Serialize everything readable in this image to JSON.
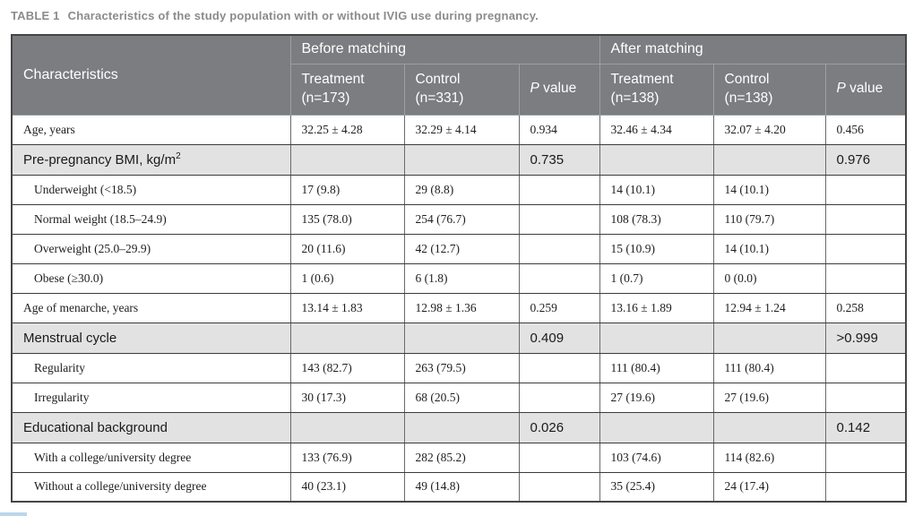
{
  "caption": {
    "label": "TABLE 1",
    "text": "Characteristics of the study population with or without IVIG use during pregnancy."
  },
  "colors": {
    "header_bg": "#7b7d80",
    "header_text": "#ffffff",
    "section_row_bg": "#e2e2e2",
    "caption_text": "#8b8b8b",
    "outer_border": "#454545"
  },
  "table": {
    "corner_header": "Characteristics",
    "groups": [
      {
        "label": "Before matching"
      },
      {
        "label": "After matching"
      }
    ],
    "subheaders": [
      {
        "name": "before-treatment-header",
        "lines": "Treatment\n(n=173)"
      },
      {
        "name": "before-control-header",
        "lines": "Control\n(n=331)"
      },
      {
        "name": "before-pvalue-header",
        "italic": "P",
        "rest": " value"
      },
      {
        "name": "after-treatment-header",
        "lines": "Treatment\n(n=138)"
      },
      {
        "name": "after-control-header",
        "lines": "Control\n(n=138)"
      },
      {
        "name": "after-pvalue-header",
        "italic": "P",
        "rest": " value"
      }
    ],
    "rows": [
      {
        "type": "data",
        "indent": false,
        "label": "Age, years",
        "cells": [
          "32.25 ± 4.28",
          "32.29 ± 4.14",
          "0.934",
          "32.46 ± 4.34",
          "32.07 ± 4.20",
          "0.456"
        ]
      },
      {
        "type": "section",
        "indent": false,
        "label": "Pre-pregnancy BMI, kg/m",
        "label_sup": "2",
        "cells": [
          "",
          "",
          "0.735",
          "",
          "",
          "0.976"
        ]
      },
      {
        "type": "data",
        "indent": true,
        "label": "Underweight (<18.5)",
        "cells": [
          "17 (9.8)",
          "29 (8.8)",
          "",
          "14 (10.1)",
          "14 (10.1)",
          ""
        ]
      },
      {
        "type": "data",
        "indent": true,
        "label": "Normal weight (18.5–24.9)",
        "cells": [
          "135 (78.0)",
          "254 (76.7)",
          "",
          "108 (78.3)",
          "110 (79.7)",
          ""
        ]
      },
      {
        "type": "data",
        "indent": true,
        "label": "Overweight (25.0–29.9)",
        "cells": [
          "20 (11.6)",
          "42 (12.7)",
          "",
          "15 (10.9)",
          "14 (10.1)",
          ""
        ]
      },
      {
        "type": "data",
        "indent": true,
        "label": "Obese (≥30.0)",
        "cells": [
          "1 (0.6)",
          "6 (1.8)",
          "",
          "1 (0.7)",
          "0 (0.0)",
          ""
        ]
      },
      {
        "type": "data",
        "indent": false,
        "label": "Age of menarche, years",
        "cells": [
          "13.14 ± 1.83",
          "12.98 ± 1.36",
          "0.259",
          "13.16 ± 1.89",
          "12.94 ± 1.24",
          "0.258"
        ]
      },
      {
        "type": "section",
        "indent": false,
        "label": "Menstrual cycle",
        "cells": [
          "",
          "",
          "0.409",
          "",
          "",
          ">0.999"
        ]
      },
      {
        "type": "data",
        "indent": true,
        "label": "Regularity",
        "cells": [
          "143 (82.7)",
          "263 (79.5)",
          "",
          "111 (80.4)",
          "111 (80.4)",
          ""
        ]
      },
      {
        "type": "data",
        "indent": true,
        "label": "Irregularity",
        "cells": [
          "30 (17.3)",
          "68 (20.5)",
          "",
          "27 (19.6)",
          "27 (19.6)",
          ""
        ]
      },
      {
        "type": "section",
        "indent": false,
        "label": "Educational background",
        "cells": [
          "",
          "",
          "0.026",
          "",
          "",
          "0.142"
        ]
      },
      {
        "type": "data",
        "indent": true,
        "label": "With a college/university degree",
        "cells": [
          "133 (76.9)",
          "282 (85.2)",
          "",
          "103 (74.6)",
          "114 (82.6)",
          ""
        ]
      },
      {
        "type": "data",
        "indent": true,
        "label": "Without a college/university degree",
        "cells": [
          "40 (23.1)",
          "49 (14.8)",
          "",
          "35 (25.4)",
          "24 (17.4)",
          ""
        ]
      }
    ]
  }
}
